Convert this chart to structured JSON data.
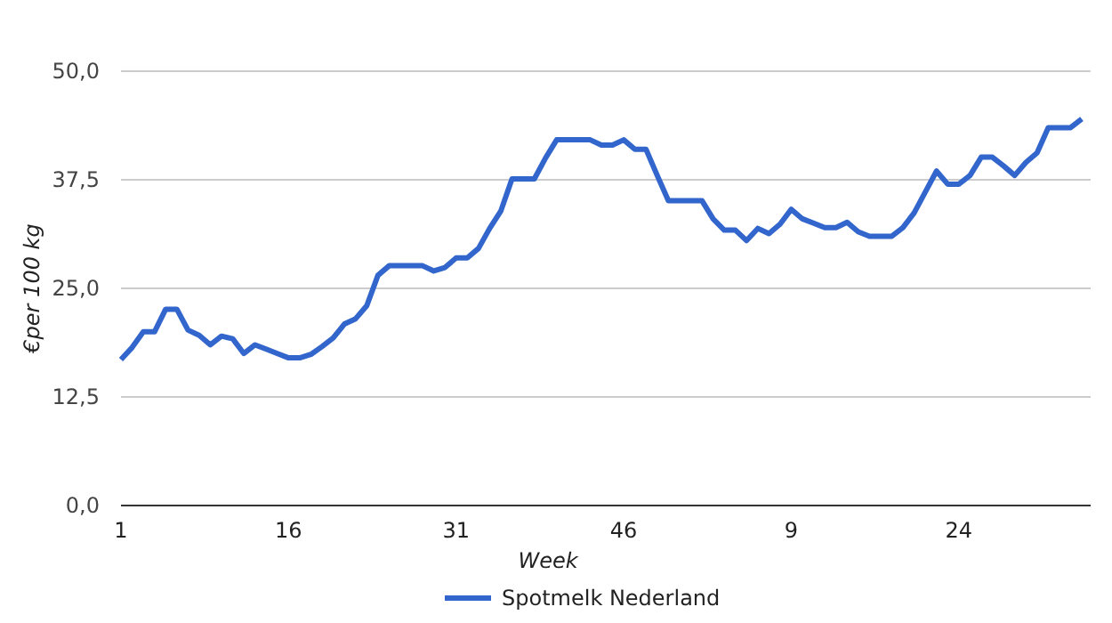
{
  "chart_data": {
    "type": "line",
    "xlabel": "Week",
    "ylabel": "€per 100 kg",
    "categories": [
      "1",
      null,
      null,
      null,
      null,
      null,
      null,
      null,
      null,
      null,
      null,
      null,
      null,
      null,
      null,
      "16",
      null,
      null,
      null,
      null,
      null,
      null,
      null,
      null,
      null,
      null,
      null,
      null,
      null,
      null,
      "31",
      null,
      null,
      null,
      null,
      null,
      null,
      null,
      null,
      null,
      null,
      null,
      null,
      null,
      null,
      "46",
      null,
      null,
      null,
      null,
      null,
      null,
      null,
      null,
      null,
      null,
      null,
      null,
      null,
      null,
      "9",
      null,
      null,
      null,
      null,
      null,
      null,
      null,
      null,
      null,
      null,
      null,
      null,
      null,
      null,
      "24",
      null,
      null,
      null,
      null,
      null,
      null,
      null,
      null,
      null,
      null,
      null
    ],
    "series": [
      {
        "name": "Spotmelk Nederland",
        "color": "#3366cc",
        "values": [
          16.8,
          18.2,
          20.0,
          20.0,
          22.6,
          22.6,
          20.2,
          19.6,
          18.5,
          19.5,
          19.2,
          17.5,
          18.5,
          18.0,
          17.5,
          17.0,
          17.0,
          17.4,
          18.3,
          19.3,
          20.9,
          21.5,
          23.0,
          26.5,
          27.6,
          27.6,
          27.6,
          27.6,
          27.0,
          27.4,
          28.5,
          28.5,
          29.6,
          31.9,
          33.9,
          37.6,
          37.6,
          37.6,
          40.0,
          42.1,
          42.1,
          42.1,
          42.1,
          41.5,
          41.5,
          42.1,
          41.0,
          41.0,
          38.0,
          35.1,
          35.1,
          35.1,
          35.1,
          33.0,
          31.7,
          31.7,
          30.5,
          31.9,
          31.3,
          32.4,
          34.1,
          33.0,
          32.5,
          32.0,
          32.0,
          32.6,
          31.5,
          31.0,
          31.0,
          31.0,
          32.0,
          33.7,
          36.1,
          38.5,
          37.0,
          37.0,
          38.0,
          40.1,
          40.1,
          39.1,
          38.0,
          39.5,
          40.6,
          43.5,
          43.5,
          43.5,
          44.5
        ]
      }
    ],
    "ylim": [
      0,
      50
    ],
    "yticks": [
      {
        "value": 0,
        "label": "0,0"
      },
      {
        "value": 12.5,
        "label": "12,5"
      },
      {
        "value": 25,
        "label": "25,0"
      },
      {
        "value": 37.5,
        "label": "37,5"
      },
      {
        "value": 50,
        "label": "50,0"
      }
    ],
    "grid": "y",
    "legend": "bottom",
    "marker": "none",
    "line_style": "solid"
  }
}
